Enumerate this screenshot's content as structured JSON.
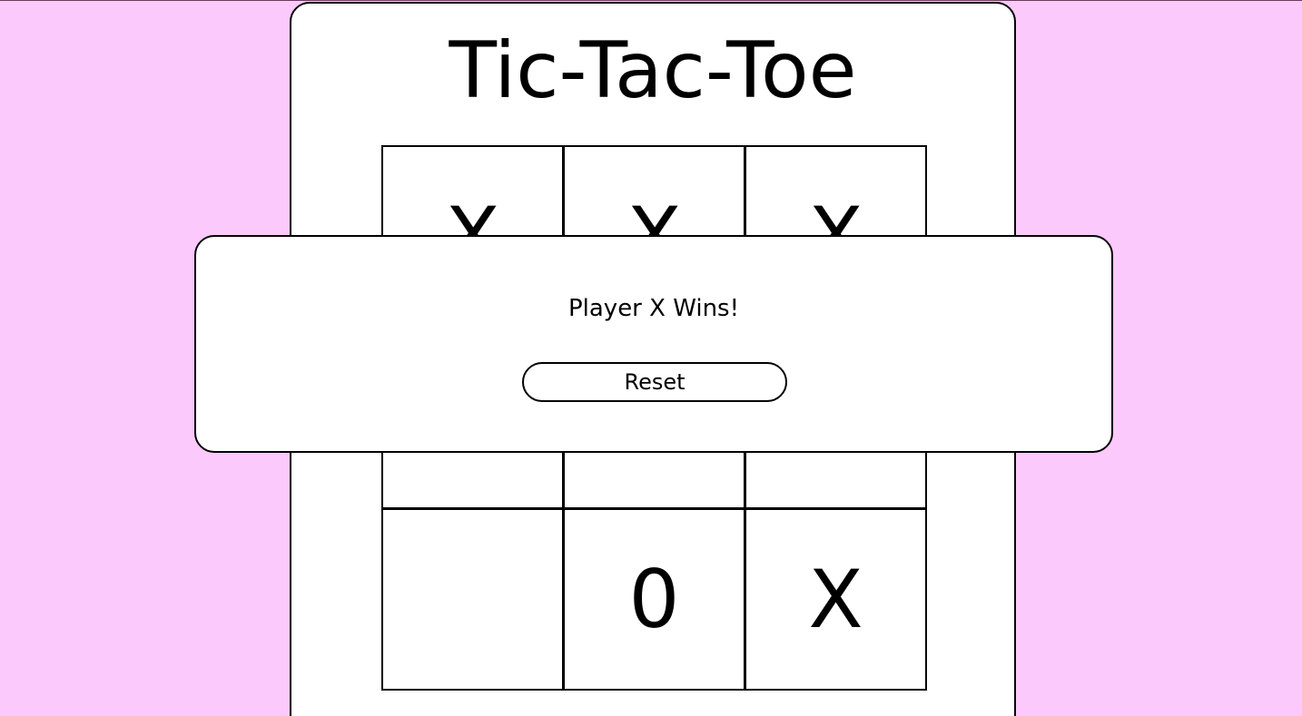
{
  "game": {
    "title": "Tic-Tac-Toe",
    "board": [
      "X",
      "X",
      "X",
      "",
      "",
      "",
      "",
      "0",
      "X"
    ]
  },
  "modal": {
    "message": "Player X Wins!",
    "reset_label": "Reset"
  },
  "colors": {
    "background": "#fcc9fd",
    "card": "#ffffff",
    "ink": "#000000"
  }
}
